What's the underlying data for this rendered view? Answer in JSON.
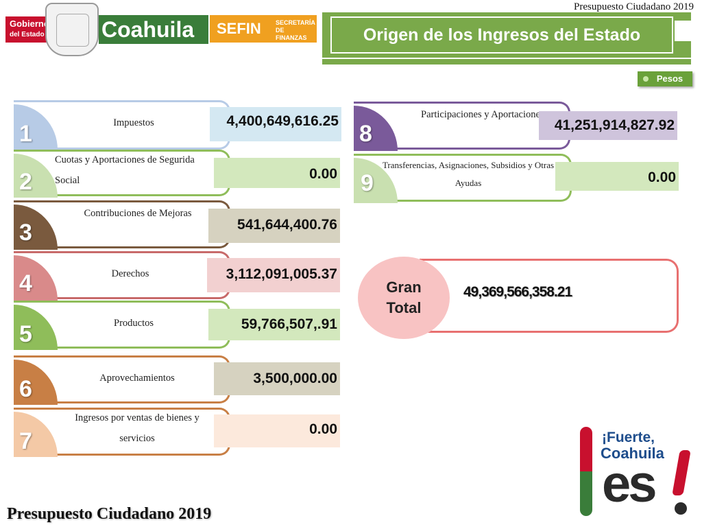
{
  "header": {
    "top_caption": "Presupuesto Ciudadano 2019",
    "logo_gobierno_line1": "Gobierno",
    "logo_gobierno_line2": "del Estado",
    "logo_coahuila": "Coahuila",
    "logo_sefin": "SEFIN",
    "logo_sefin_sub1": "SECRETARÍA",
    "logo_sefin_sub2": "DE FINANZAS",
    "title": "Origen de los Ingresos del Estado",
    "unit_badge": "Pesos"
  },
  "colors": {
    "green": "#7aa94a",
    "item1": "#b7cbe6",
    "item2": "#8fbd5a",
    "item3": "#7a5a3e",
    "item4": "#d98a8a",
    "item5": "#8fbd5a",
    "item6": "#c87f45",
    "item7": "#f4c9a6",
    "item8": "#7a5a9a",
    "item9": "#c9e0b0"
  },
  "items": [
    {
      "num": "1",
      "label": "Impuestos",
      "value": "4,400,649,616.25"
    },
    {
      "num": "2",
      "label_line1": "Cuotas y Aportaciones de Segurida",
      "label_line2": "Social",
      "value": "0.00"
    },
    {
      "num": "3",
      "label": "Contribuciones de Mejoras",
      "value": "541,644,400.76"
    },
    {
      "num": "4",
      "label": "Derechos",
      "value": "3,112,091,005.37"
    },
    {
      "num": "5",
      "label": "Productos",
      "value": "59,766,507,.91"
    },
    {
      "num": "6",
      "label": "Aprovechamientos",
      "value": "3,500,000.00"
    },
    {
      "num": "7",
      "label_line1": "Ingresos por ventas de bienes y",
      "label_line2": "servicios",
      "value": "0.00"
    },
    {
      "num": "8",
      "label": "Participaciones y Aportacione",
      "value": "41,251,914,827.92"
    },
    {
      "num": "9",
      "label_line1": "Transferencias, Asignaciones, Subsidios y Otras",
      "label_line2": "Ayudas",
      "value": "0.00"
    }
  ],
  "total": {
    "label_line1": "Gran",
    "label_line2": "Total",
    "value": "49,369,566,358.21"
  },
  "slogan": {
    "line1": "¡Fuerte,",
    "line2": "Coahuila",
    "line3": "es"
  },
  "footer": "Presupuesto Ciudadano 2019"
}
